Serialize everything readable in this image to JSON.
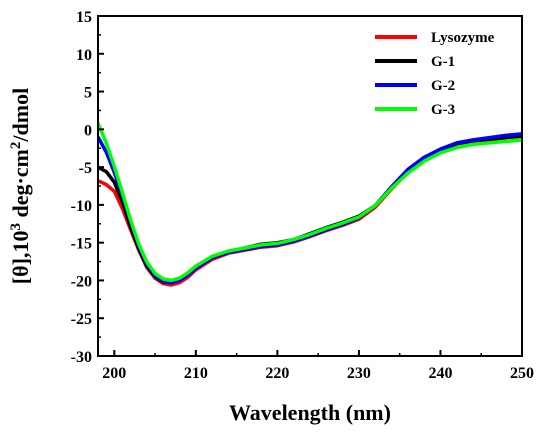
{
  "chart_data": {
    "type": "line",
    "title": "",
    "xlabel": "Wavelength (nm)",
    "ylabel": {
      "prefix": "[θ],10",
      "sup1": "3",
      "middle": " deg·cm",
      "sup2": "2",
      "suffix": "/dmol"
    },
    "xlim": [
      198,
      250
    ],
    "ylim": [
      -30,
      15
    ],
    "xticks": [
      200,
      210,
      220,
      230,
      240,
      250
    ],
    "yticks": [
      15,
      10,
      5,
      0,
      -5,
      -10,
      -15,
      -20,
      -25,
      -30
    ],
    "legend_position": "top-right",
    "grid": false,
    "series": [
      {
        "name": "Lysozyme",
        "color": "#ff0000",
        "x": [
          198,
          199,
          200,
          201,
          202,
          203,
          204,
          205,
          206,
          207,
          208,
          209,
          210,
          212,
          214,
          216,
          218,
          220,
          222,
          224,
          226,
          228,
          230,
          232,
          234,
          236,
          238,
          240,
          242,
          244,
          246,
          248,
          250
        ],
        "y": [
          -6.8,
          -7.3,
          -8.2,
          -10.5,
          -13.3,
          -16.0,
          -18.3,
          -19.7,
          -20.4,
          -20.6,
          -20.3,
          -19.6,
          -18.6,
          -17.2,
          -16.4,
          -16.0,
          -15.6,
          -15.4,
          -14.9,
          -14.2,
          -13.4,
          -12.7,
          -11.9,
          -10.3,
          -7.9,
          -5.7,
          -4.0,
          -2.8,
          -1.9,
          -1.6,
          -1.4,
          -1.1,
          -0.9
        ]
      },
      {
        "name": "G-1",
        "color": "#000000",
        "x": [
          198,
          199,
          200,
          201,
          202,
          203,
          204,
          205,
          206,
          207,
          208,
          209,
          210,
          212,
          214,
          216,
          218,
          220,
          222,
          224,
          226,
          228,
          230,
          232,
          234,
          236,
          238,
          240,
          242,
          244,
          246,
          248,
          250
        ],
        "y": [
          -5.0,
          -5.6,
          -7.0,
          -9.6,
          -12.9,
          -15.8,
          -18.1,
          -19.5,
          -20.2,
          -20.3,
          -19.9,
          -19.1,
          -18.2,
          -16.9,
          -16.2,
          -15.7,
          -15.2,
          -15.0,
          -14.6,
          -13.8,
          -13.0,
          -12.3,
          -11.5,
          -10.1,
          -7.7,
          -5.6,
          -3.9,
          -2.7,
          -1.9,
          -1.5,
          -1.3,
          -1.1,
          -0.9
        ]
      },
      {
        "name": "G-2",
        "color": "#0000ff",
        "x": [
          198,
          199,
          200,
          201,
          202,
          203,
          204,
          205,
          206,
          207,
          208,
          209,
          210,
          212,
          214,
          216,
          218,
          220,
          222,
          224,
          226,
          228,
          230,
          232,
          234,
          236,
          238,
          240,
          242,
          244,
          246,
          248,
          250
        ],
        "y": [
          -1.0,
          -3.0,
          -5.7,
          -8.8,
          -12.3,
          -15.5,
          -17.9,
          -19.4,
          -20.1,
          -20.3,
          -20.0,
          -19.3,
          -18.4,
          -17.0,
          -16.3,
          -15.9,
          -15.5,
          -15.3,
          -14.8,
          -14.1,
          -13.3,
          -12.6,
          -11.7,
          -10.1,
          -7.6,
          -5.3,
          -3.7,
          -2.6,
          -1.8,
          -1.4,
          -1.1,
          -0.8,
          -0.6
        ]
      },
      {
        "name": "G-3",
        "color": "#00ff00",
        "x": [
          198,
          199,
          200,
          201,
          202,
          203,
          204,
          205,
          206,
          207,
          208,
          209,
          210,
          212,
          214,
          216,
          218,
          220,
          222,
          224,
          226,
          228,
          230,
          232,
          234,
          236,
          238,
          240,
          242,
          244,
          246,
          248,
          250
        ],
        "y": [
          0.8,
          -1.8,
          -4.9,
          -8.4,
          -12.0,
          -15.2,
          -17.6,
          -19.1,
          -19.8,
          -20.0,
          -19.7,
          -19.0,
          -18.1,
          -16.8,
          -16.1,
          -15.7,
          -15.3,
          -15.1,
          -14.6,
          -13.9,
          -13.1,
          -12.4,
          -11.6,
          -10.1,
          -7.8,
          -5.8,
          -4.2,
          -3.1,
          -2.4,
          -2.0,
          -1.8,
          -1.6,
          -1.4
        ]
      }
    ]
  }
}
